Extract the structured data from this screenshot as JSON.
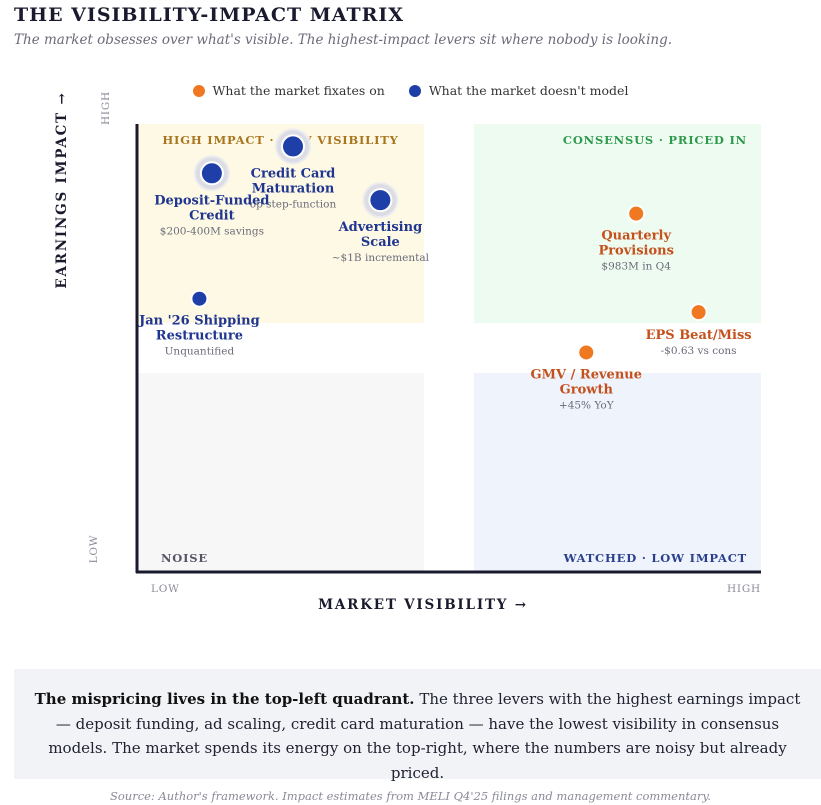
{
  "header": {
    "title": "THE VISIBILITY-IMPACT MATRIX",
    "subtitle": "The market obsesses over what's visible. The highest-impact levers sit where nobody is looking."
  },
  "legend": {
    "items": [
      {
        "label": "What the market fixates on",
        "color": "#f07820"
      },
      {
        "label": "What the market doesn't model",
        "color": "#1f3fa8"
      }
    ]
  },
  "chart_data": {
    "type": "scatter",
    "title": "THE VISIBILITY-IMPACT MATRIX",
    "xlabel": "MARKET VISIBILITY →",
    "ylabel": "EARNINGS IMPACT →",
    "xlim": [
      0,
      100
    ],
    "ylim": [
      0,
      100
    ],
    "x_tick_labels": {
      "low": "LOW",
      "high": "HIGH"
    },
    "y_tick_labels": {
      "low": "LOW",
      "high": "HIGH"
    },
    "quadrants": [
      {
        "label": "HIGH IMPACT · LOW VISIBILITY",
        "position": "top-left",
        "color": "#a9751f",
        "fill": "#fdf9e4"
      },
      {
        "label": "CONSENSUS · PRICED IN",
        "position": "top-right",
        "color": "#2f9a4e",
        "fill": "#eefbf0"
      },
      {
        "label": "NOISE",
        "position": "bottom-left",
        "color": "#555566",
        "fill": "#f7f7f8"
      },
      {
        "label": "WATCHED · LOW IMPACT",
        "position": "bottom-right",
        "color": "#2b3f8e",
        "fill": "#eef3fc"
      }
    ],
    "series": [
      {
        "name": "What the market doesn't model",
        "color": "#1f3fa8",
        "points": [
          {
            "label": "Credit Card Maturation",
            "sublabel": "op step-function",
            "x": 25,
            "y": 95,
            "emphasis": true
          },
          {
            "label": "Deposit-Funded Credit",
            "sublabel": "$200-400M savings",
            "x": 12,
            "y": 89,
            "emphasis": true
          },
          {
            "label": "Advertising Scale",
            "sublabel": "~$1B incremental",
            "x": 39,
            "y": 83,
            "emphasis": true
          },
          {
            "label": "Jan '26 Shipping Restructure",
            "sublabel": "Unquantified",
            "x": 10,
            "y": 61,
            "emphasis": false
          }
        ]
      },
      {
        "name": "What the market fixates on",
        "color": "#f07820",
        "points": [
          {
            "label": "Quarterly Provisions",
            "sublabel": "$983M in Q4",
            "x": 80,
            "y": 80
          },
          {
            "label": "EPS Beat/Miss",
            "sublabel": "-$0.63 vs cons",
            "x": 90,
            "y": 58
          },
          {
            "label": "GMV / Revenue Growth",
            "sublabel": "+45% YoY",
            "x": 72,
            "y": 49
          }
        ]
      }
    ]
  },
  "callout": {
    "bold": "The mispricing lives in the top-left quadrant.",
    "text": " The three levers with the highest earnings impact — deposit funding, ad scaling, credit card maturation — have the lowest visibility in consensus models. The market spends its energy on the top-right, where the numbers are noisy but already priced."
  },
  "source": "Source: Author's framework. Impact estimates from MELI Q4'25 filings and management commentary."
}
